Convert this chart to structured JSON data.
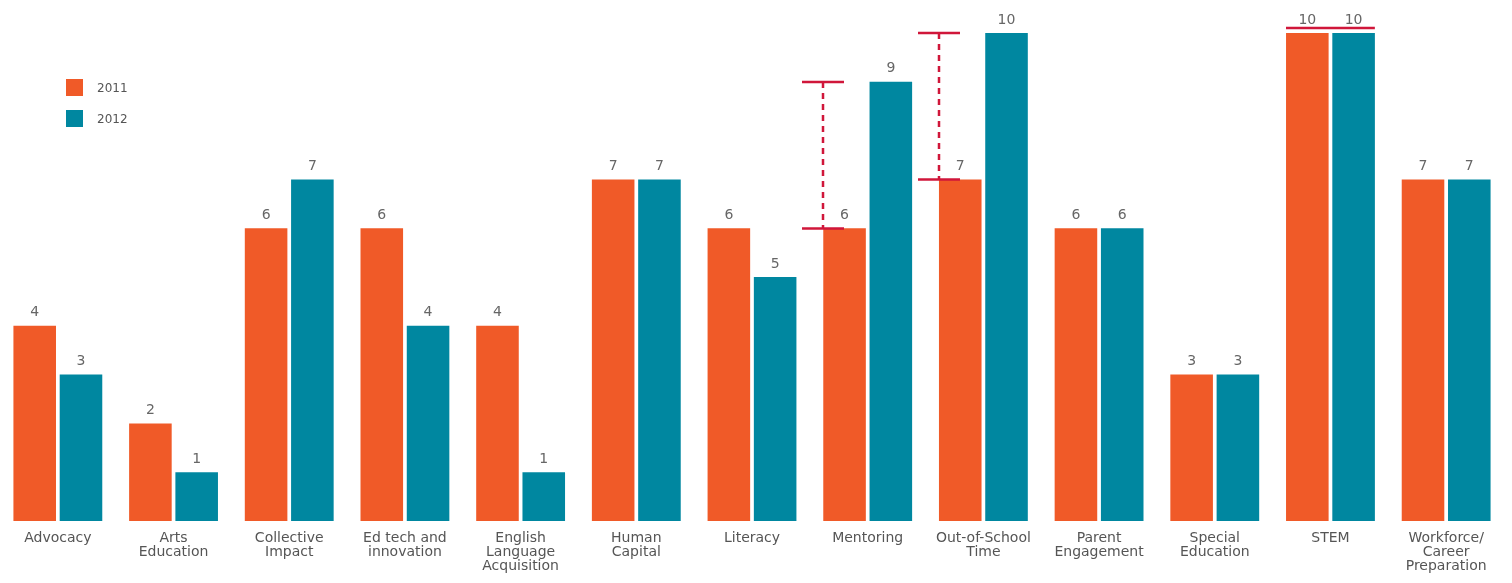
{
  "chart_data": {
    "type": "bar",
    "categories": [
      "Advocacy",
      "Arts Education",
      "Collective Impact",
      "Ed tech and innovation",
      "English Language Acquisition",
      "Human Capital",
      "Literacy",
      "Mentoring",
      "Out-of-School Time",
      "Parent Engagement",
      "Special Education",
      "STEM",
      "Workforce/ Career Preparation"
    ],
    "series": [
      {
        "name": "2011",
        "color": "#f05a28",
        "values": [
          4,
          2,
          6,
          6,
          4,
          7,
          6,
          6,
          7,
          6,
          3,
          10,
          7
        ]
      },
      {
        "name": "2012",
        "color": "#0087a0",
        "values": [
          3,
          1,
          7,
          4,
          1,
          7,
          5,
          9,
          10,
          6,
          3,
          10,
          7
        ]
      }
    ],
    "ylim": [
      0,
      10
    ],
    "tick_labels": "x",
    "grid": false,
    "legend": "top left",
    "data_labels": true
  }
}
